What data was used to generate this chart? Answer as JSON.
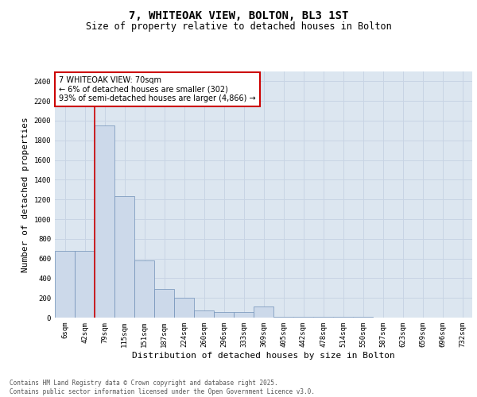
{
  "title_line1": "7, WHITEOAK VIEW, BOLTON, BL3 1ST",
  "title_line2": "Size of property relative to detached houses in Bolton",
  "xlabel": "Distribution of detached houses by size in Bolton",
  "ylabel": "Number of detached properties",
  "categories": [
    "6sqm",
    "42sqm",
    "79sqm",
    "115sqm",
    "151sqm",
    "187sqm",
    "224sqm",
    "260sqm",
    "296sqm",
    "333sqm",
    "369sqm",
    "405sqm",
    "442sqm",
    "478sqm",
    "514sqm",
    "550sqm",
    "587sqm",
    "623sqm",
    "659sqm",
    "696sqm",
    "732sqm"
  ],
  "values": [
    680,
    680,
    1950,
    1230,
    580,
    290,
    200,
    75,
    55,
    55,
    110,
    5,
    5,
    5,
    5,
    5,
    2,
    1,
    0,
    0,
    0
  ],
  "bar_color": "#ccd9ea",
  "bar_edge_color": "#7090b8",
  "vline_x_index": 1.5,
  "vline_color": "#cc0000",
  "annotation_text": "7 WHITEOAK VIEW: 70sqm\n← 6% of detached houses are smaller (302)\n93% of semi-detached houses are larger (4,866) →",
  "annotation_box_color": "#ffffff",
  "annotation_box_edge_color": "#cc0000",
  "ylim": [
    0,
    2500
  ],
  "yticks": [
    0,
    200,
    400,
    600,
    800,
    1000,
    1200,
    1400,
    1600,
    1800,
    2000,
    2200,
    2400
  ],
  "grid_color": "#c8d4e4",
  "background_color": "#dce6f0",
  "footer_text": "Contains HM Land Registry data © Crown copyright and database right 2025.\nContains public sector information licensed under the Open Government Licence v3.0.",
  "title_fontsize": 10,
  "subtitle_fontsize": 8.5,
  "tick_fontsize": 6.5,
  "label_fontsize": 8,
  "footer_fontsize": 5.5
}
